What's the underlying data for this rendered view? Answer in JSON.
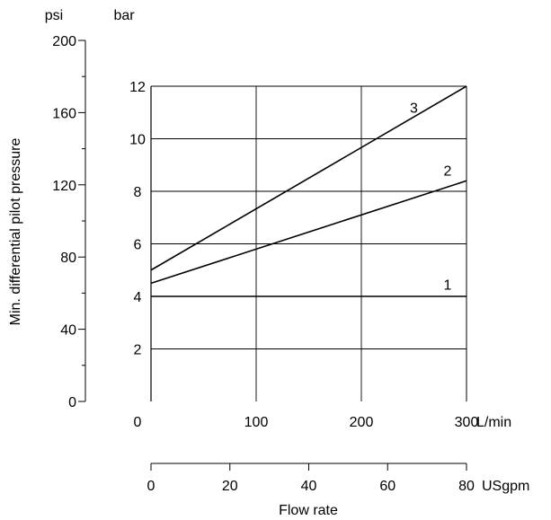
{
  "chart_data": {
    "type": "line",
    "title": "",
    "ylabel": "Min. differential pilot pressure",
    "xlabel": "Flow rate",
    "units": {
      "psi": "psi",
      "bar": "bar",
      "lmin": "L/min",
      "usgpm": "USgpm"
    },
    "y_bar_axis": {
      "range": [
        0,
        12
      ],
      "ticks": [
        "2",
        "4",
        "6",
        "8",
        "10",
        "12"
      ],
      "tick_values": [
        2,
        4,
        6,
        8,
        10,
        12
      ]
    },
    "y_psi_axis": {
      "range": [
        0,
        200
      ],
      "ticks": [
        "0",
        "40",
        "80",
        "120",
        "160",
        "200"
      ],
      "tick_values": [
        0,
        40,
        80,
        120,
        160,
        200
      ],
      "minor_step": 20
    },
    "x_lmin_axis": {
      "range": [
        0,
        300
      ],
      "ticks": [
        "0",
        "100",
        "200",
        "300"
      ],
      "tick_values": [
        0,
        100,
        200,
        300
      ]
    },
    "x_usgpm_axis": {
      "range": [
        0,
        80
      ],
      "ticks": [
        "0",
        "20",
        "40",
        "60",
        "80"
      ],
      "tick_values": [
        0,
        20,
        40,
        60,
        80
      ]
    },
    "grid": true,
    "series": [
      {
        "name": "1",
        "x": [
          0,
          300
        ],
        "y": [
          4.0,
          4.0
        ],
        "label_at": [
          282,
          4.25
        ]
      },
      {
        "name": "2",
        "x": [
          0,
          300
        ],
        "y": [
          4.5,
          8.4
        ],
        "label_at": [
          282,
          8.6
        ]
      },
      {
        "name": "3",
        "x": [
          0,
          300
        ],
        "y": [
          5.0,
          12.0
        ],
        "label_at": [
          250,
          11.0
        ]
      }
    ]
  }
}
